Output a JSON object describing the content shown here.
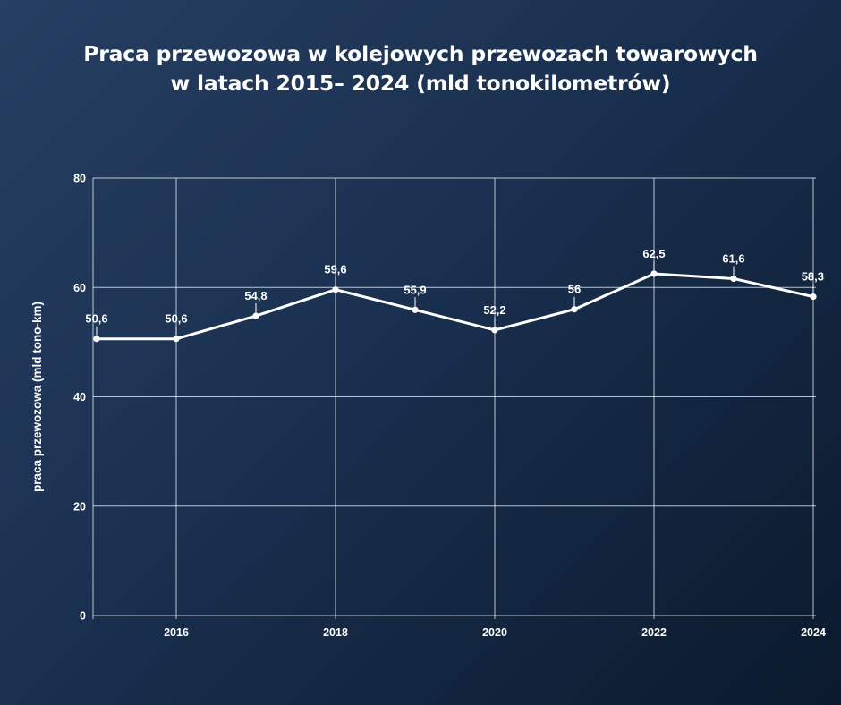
{
  "chart_data": {
    "type": "line",
    "title": "Praca przewozowa w kolejowych przewozach towarowych w latach 2015– 2024 (mld tonokilometrów)",
    "title_lines": [
      "Praca przewozowa w kolejowych przewozach towarowych",
      "w latach 2015– 2024 (mld tonokilometrów)"
    ],
    "xlabel": "",
    "ylabel": "praca przewozowa (mld tono-km)",
    "x": [
      2015,
      2016,
      2017,
      2018,
      2019,
      2020,
      2021,
      2022,
      2023,
      2024
    ],
    "values": [
      50.6,
      50.6,
      54.8,
      59.6,
      55.9,
      52.2,
      56,
      62.5,
      61.6,
      58.3
    ],
    "data_labels": [
      "50,6",
      "50,6",
      "54,8",
      "59,6",
      "55,9",
      "52,2",
      "56",
      "62,5",
      "61,6",
      "58,3"
    ],
    "xlim": [
      2015,
      2024
    ],
    "ylim": [
      0,
      80
    ],
    "x_ticks": [
      2016,
      2018,
      2020,
      2022,
      2024
    ],
    "y_ticks": [
      0,
      20,
      40,
      60,
      80
    ],
    "grid": true,
    "legend": "none",
    "colors": {
      "line": "#ffffff",
      "grid": "#c8d0dc",
      "background_start": "#263f62",
      "background_end": "#0b1a2c"
    }
  }
}
